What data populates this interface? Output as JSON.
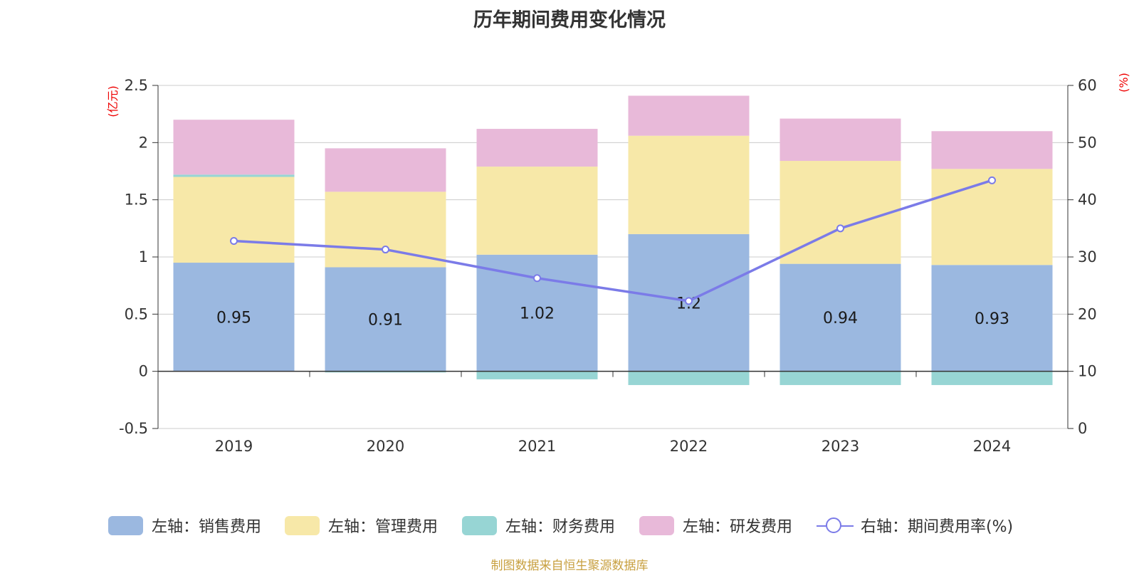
{
  "chart_data": {
    "type": "bar",
    "title": "历年期间费用变化情况",
    "categories": [
      "2019",
      "2020",
      "2021",
      "2022",
      "2023",
      "2024"
    ],
    "y_left": {
      "unit": "(亿元)",
      "ylim": [
        -0.5,
        2.5
      ],
      "ticks": [
        "-0.5",
        "0",
        "0.5",
        "1",
        "1.5",
        "2",
        "2.5"
      ]
    },
    "y_right": {
      "unit": "(%)",
      "ylim": [
        0,
        60
      ],
      "ticks": [
        "0",
        "10",
        "20",
        "30",
        "40",
        "50",
        "60"
      ]
    },
    "series": [
      {
        "name": "左轴：销售费用",
        "kind": "bar",
        "axis": "left",
        "color": "#9bb8e0",
        "values": [
          0.95,
          0.91,
          1.02,
          1.2,
          0.94,
          0.93
        ],
        "labels": [
          "0.95",
          "0.91",
          "1.02",
          "1.2",
          "0.94",
          "0.93"
        ]
      },
      {
        "name": "左轴：管理费用",
        "kind": "bar",
        "axis": "left",
        "color": "#f7e8a8",
        "values": [
          0.75,
          0.66,
          0.77,
          0.86,
          0.9,
          0.84
        ]
      },
      {
        "name": "左轴：财务费用",
        "kind": "bar",
        "axis": "left",
        "color": "#97d5d4",
        "values": [
          0.02,
          -0.01,
          -0.07,
          -0.12,
          -0.12,
          -0.12
        ]
      },
      {
        "name": "左轴：研发费用",
        "kind": "bar",
        "axis": "left",
        "color": "#e8b9d9",
        "values": [
          0.48,
          0.38,
          0.33,
          0.35,
          0.37,
          0.33
        ]
      },
      {
        "name": "右轴：期间费用率(%)",
        "kind": "line",
        "axis": "right",
        "color": "#7b7be8",
        "values": [
          32.8,
          31.3,
          26.3,
          22.3,
          35.0,
          43.4
        ]
      }
    ],
    "grid": true,
    "legend_position": "bottom"
  },
  "source": "制图数据来自恒生聚源数据库"
}
